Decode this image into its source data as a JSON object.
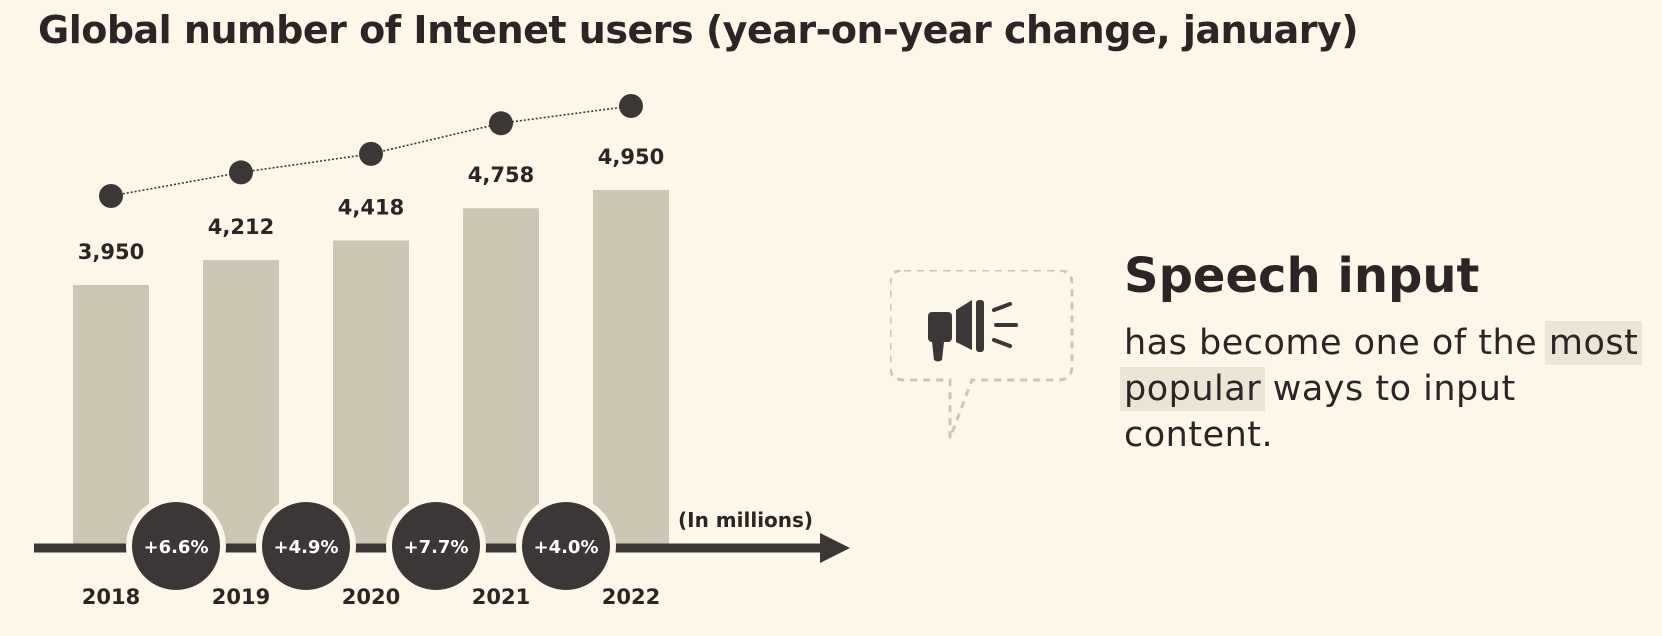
{
  "title": "Global number of Intenet users (year-on-year change, january)",
  "unit_note": "(In millions)",
  "colors": {
    "background": "#fdf7ea",
    "bar": "#cdc6b4",
    "dark": "#3b3736",
    "highlight": "#ece5d6"
  },
  "icons": {
    "speech": "megaphone-icon"
  },
  "chart_data": {
    "type": "bar",
    "title": "Global number of Intenet users (year-on-year change, january)",
    "categories": [
      "2018",
      "2019",
      "2020",
      "2021",
      "2022"
    ],
    "values": [
      3950,
      4212,
      4418,
      4758,
      4950
    ],
    "value_labels": [
      "3,950",
      "4,212",
      "4,418",
      "4,758",
      "4,950"
    ],
    "changes": [
      "+6.6%",
      "+4.9%",
      "+7.7%",
      "+4.0%"
    ],
    "ylabel": "(In millions)",
    "grid": false,
    "trend_line": true
  },
  "speech": {
    "heading": "Speech input",
    "body_pre": "has become one of the",
    "body_highlight_1": "most",
    "body_highlight_2": "popular",
    "body_post": "ways to input content."
  }
}
